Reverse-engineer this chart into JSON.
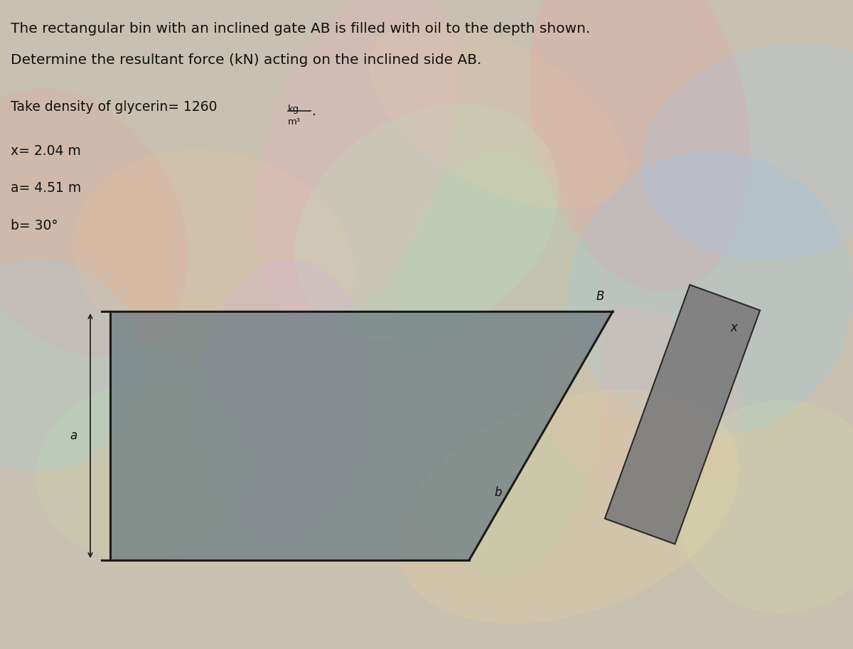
{
  "title_line1": "The rectangular bin with an inclined gate AB is filled with oil to the depth shown.",
  "title_line2": "Determine the resultant force (kN) acting on the inclined side AB.",
  "density_label": "Take density of glycerin= 1260",
  "density_num": "kg",
  "density_den": "m³",
  "density_dot": ".",
  "x_val": "x= 2.04 m",
  "a_val": "a= 4.51 m",
  "b_val": "b= 30°",
  "bg_color": "#c8c0b0",
  "bin_fill_color": "#6a7a80",
  "bin_border_color": "#1a1a1a",
  "panel_fill_color": "#7a7a7a",
  "panel_border_color": "#1a1a1a",
  "label_a": "a",
  "label_b": "b",
  "label_B": "B",
  "label_x": "x",
  "text_color": "#111111"
}
